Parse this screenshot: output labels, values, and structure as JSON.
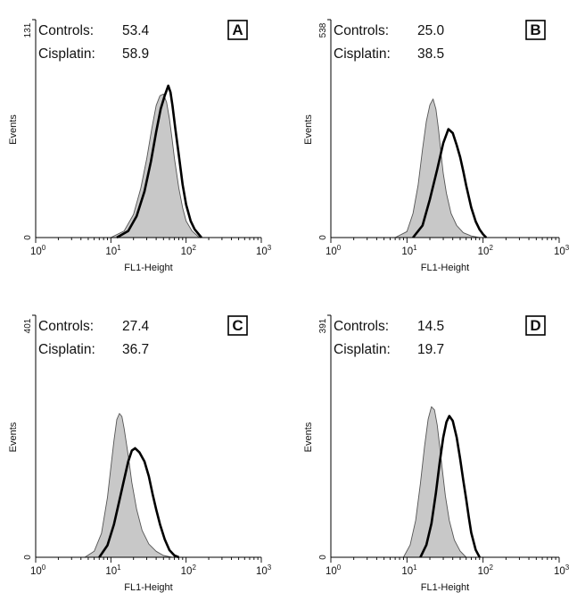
{
  "chart_data": [
    {
      "type": "area",
      "panel_label": "A",
      "xlabel": "FL1-Height",
      "ylabel": "Events",
      "x_scale": "log",
      "xlim": [
        1,
        1000
      ],
      "x_tick_labels": [
        {
          "base": "10",
          "exp": "0"
        },
        {
          "base": "10",
          "exp": "1"
        },
        {
          "base": "10",
          "exp": "2"
        },
        {
          "base": "10",
          "exp": "3"
        }
      ],
      "ylim": [
        0,
        131
      ],
      "y_tick_labels": [
        "0",
        "131"
      ],
      "stats": [
        {
          "label": "Controls:",
          "value": "53.4"
        },
        {
          "label": "Cisplatin:",
          "value": "58.9"
        }
      ],
      "series": [
        {
          "name": "Controls",
          "style": "gray-filled",
          "x": [
            10,
            15,
            20,
            25,
            30,
            35,
            40,
            45,
            50,
            55,
            60,
            65,
            70,
            80,
            90,
            100,
            120,
            150
          ],
          "values": [
            0,
            4,
            14,
            30,
            48,
            66,
            80,
            86,
            87,
            82,
            72,
            60,
            48,
            30,
            18,
            10,
            4,
            0
          ]
        },
        {
          "name": "Cisplatin",
          "style": "bold-line",
          "x": [
            12,
            17,
            22,
            28,
            34,
            40,
            46,
            52,
            58,
            62,
            66,
            72,
            80,
            90,
            100,
            115,
            130,
            160
          ],
          "values": [
            0,
            4,
            13,
            28,
            46,
            64,
            78,
            86,
            92,
            88,
            80,
            66,
            50,
            32,
            20,
            10,
            5,
            0
          ]
        }
      ]
    },
    {
      "type": "area",
      "panel_label": "B",
      "xlabel": "FL1-Height",
      "ylabel": "Events",
      "x_scale": "log",
      "xlim": [
        1,
        1000
      ],
      "x_tick_labels": [
        {
          "base": "10",
          "exp": "0"
        },
        {
          "base": "10",
          "exp": "1"
        },
        {
          "base": "10",
          "exp": "2"
        },
        {
          "base": "10",
          "exp": "3"
        }
      ],
      "ylim": [
        0,
        538
      ],
      "y_tick_labels": [
        "0",
        "538"
      ],
      "stats": [
        {
          "label": "Controls:",
          "value": "25.0"
        },
        {
          "label": "Cisplatin:",
          "value": "38.5"
        }
      ],
      "series": [
        {
          "name": "Controls",
          "style": "gray-filled",
          "x": [
            7,
            10,
            12,
            14,
            16,
            18,
            20,
            22,
            24,
            26,
            28,
            30,
            33,
            38,
            45,
            55,
            70,
            90
          ],
          "values": [
            0,
            15,
            60,
            130,
            220,
            290,
            330,
            345,
            320,
            270,
            210,
            160,
            110,
            60,
            30,
            12,
            4,
            0
          ]
        },
        {
          "name": "Cisplatin",
          "style": "bold-line",
          "x": [
            12,
            16,
            20,
            25,
            30,
            35,
            40,
            45,
            50,
            55,
            60,
            70,
            80,
            90,
            100,
            110
          ],
          "values": [
            0,
            30,
            95,
            170,
            235,
            270,
            260,
            230,
            200,
            165,
            130,
            75,
            40,
            20,
            8,
            0
          ]
        }
      ]
    },
    {
      "type": "area",
      "panel_label": "C",
      "xlabel": "FL1-Height",
      "ylabel": "Events",
      "x_scale": "log",
      "xlim": [
        1,
        1000
      ],
      "x_tick_labels": [
        {
          "base": "10",
          "exp": "0"
        },
        {
          "base": "10",
          "exp": "1"
        },
        {
          "base": "10",
          "exp": "2"
        },
        {
          "base": "10",
          "exp": "3"
        }
      ],
      "ylim": [
        0,
        401
      ],
      "y_tick_labels": [
        "0",
        "401"
      ],
      "stats": [
        {
          "label": "Controls:",
          "value": "27.4"
        },
        {
          "label": "Cisplatin:",
          "value": "36.7"
        }
      ],
      "series": [
        {
          "name": "Controls",
          "style": "gray-filled",
          "x": [
            4.5,
            6,
            7.5,
            9,
            10,
            11,
            12,
            13,
            14,
            15,
            17,
            19,
            22,
            26,
            32,
            40,
            50,
            65
          ],
          "values": [
            0,
            10,
            40,
            100,
            150,
            195,
            230,
            240,
            235,
            215,
            170,
            125,
            80,
            45,
            22,
            10,
            3,
            0
          ]
        },
        {
          "name": "Cisplatin",
          "style": "bold-line",
          "x": [
            7,
            9,
            11,
            13,
            15,
            17,
            19,
            21,
            24,
            28,
            32,
            36,
            40,
            45,
            52,
            60,
            70,
            80
          ],
          "values": [
            0,
            20,
            55,
            95,
            130,
            160,
            178,
            182,
            175,
            160,
            135,
            105,
            80,
            55,
            30,
            12,
            3,
            0
          ]
        }
      ]
    },
    {
      "type": "area",
      "panel_label": "D",
      "xlabel": "FL1-Height",
      "ylabel": "Events",
      "x_scale": "log",
      "xlim": [
        1,
        1000
      ],
      "x_tick_labels": [
        {
          "base": "10",
          "exp": "0"
        },
        {
          "base": "10",
          "exp": "1"
        },
        {
          "base": "10",
          "exp": "2"
        },
        {
          "base": "10",
          "exp": "3"
        }
      ],
      "ylim": [
        0,
        391
      ],
      "y_tick_labels": [
        "0",
        "391"
      ],
      "stats": [
        {
          "label": "Controls:",
          "value": "14.5"
        },
        {
          "label": "Cisplatin:",
          "value": "19.7"
        }
      ],
      "series": [
        {
          "name": "Controls",
          "style": "gray-filled",
          "x": [
            9,
            11,
            13,
            15,
            17,
            19,
            21,
            23,
            25,
            27,
            29,
            32,
            36,
            42,
            50,
            60
          ],
          "values": [
            0,
            20,
            60,
            120,
            180,
            225,
            245,
            240,
            215,
            180,
            145,
            100,
            60,
            28,
            10,
            0
          ]
        },
        {
          "name": "Cisplatin",
          "style": "bold-line",
          "x": [
            15,
            18,
            21,
            24,
            27,
            30,
            33,
            36,
            40,
            45,
            50,
            55,
            60,
            65,
            70,
            80,
            90
          ],
          "values": [
            0,
            20,
            55,
            105,
            155,
            195,
            220,
            230,
            222,
            195,
            160,
            125,
            95,
            65,
            40,
            12,
            0
          ]
        }
      ]
    }
  ]
}
